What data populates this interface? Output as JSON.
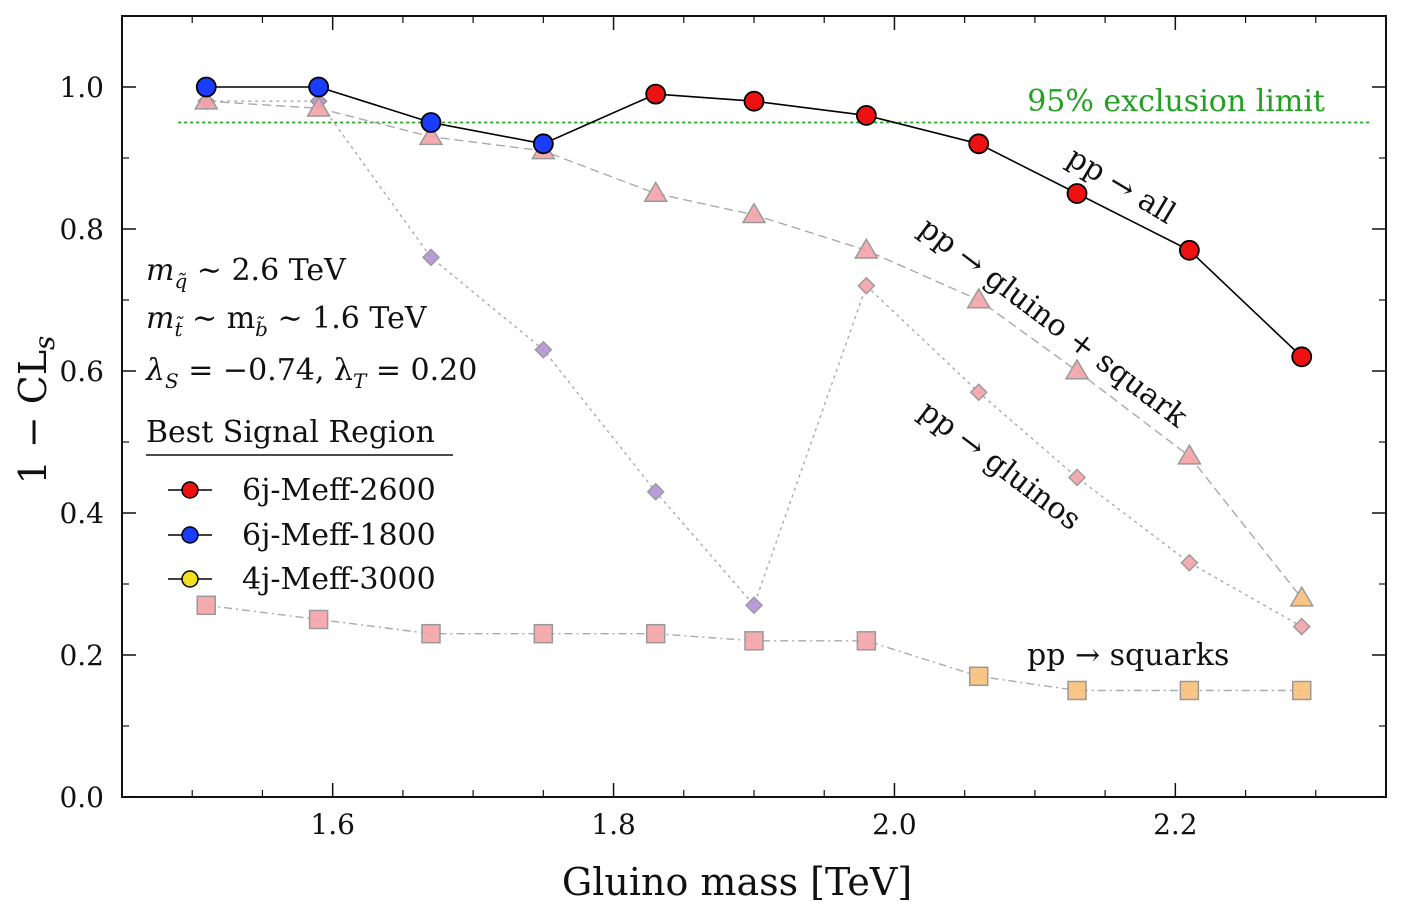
{
  "chart_data": {
    "type": "line",
    "xlabel": "Gluino mass [TeV]",
    "ylabel": "1 − CL",
    "ylabel_sub": "s",
    "xlim": [
      1.45,
      2.35
    ],
    "ylim": [
      0.0,
      1.1
    ],
    "x_ticks": [
      1.6,
      1.8,
      2.0,
      2.2
    ],
    "x_tick_labels": [
      "1.6",
      "1.8",
      "2.0",
      "2.2"
    ],
    "y_ticks": [
      0.0,
      0.2,
      0.4,
      0.6,
      0.8,
      1.0
    ],
    "y_tick_labels": [
      "0.0",
      "0.2",
      "0.4",
      "0.6",
      "0.8",
      "1.0"
    ],
    "x": [
      1.51,
      1.59,
      1.67,
      1.75,
      1.83,
      1.9,
      1.98,
      2.06,
      2.13,
      2.21,
      2.29
    ],
    "series": [
      {
        "name": "pp → all",
        "marker": "circle",
        "line_color": "#000000",
        "dash": "",
        "values": [
          1.0,
          1.0,
          0.95,
          0.92,
          0.99,
          0.98,
          0.96,
          0.92,
          0.85,
          0.77,
          0.62
        ],
        "point_colors": [
          "#1a3cff",
          "#1a3cff",
          "#1a3cff",
          "#1a3cff",
          "#ee1111",
          "#ee1111",
          "#ee1111",
          "#ee1111",
          "#ee1111",
          "#ee1111",
          "#ee1111"
        ],
        "label": "pp → all"
      },
      {
        "name": "pp → gluino + squark",
        "marker": "triangle",
        "line_color": "#aaaaaa",
        "dash": "9 5",
        "values": [
          0.98,
          0.97,
          0.93,
          0.91,
          0.85,
          0.82,
          0.77,
          0.7,
          0.6,
          0.48,
          0.28
        ],
        "point_colors": [
          "#f4a3a8",
          "#f4a3a8",
          "#f4a3a8",
          "#f4a3a8",
          "#f4a3a8",
          "#f4a3a8",
          "#f4a3a8",
          "#f4a3a8",
          "#f4a3a8",
          "#f4a3a8",
          "#f9c07a"
        ],
        "label": "pp → gluino + squark"
      },
      {
        "name": "pp → gluinos",
        "marker": "diamond",
        "line_color": "#aaaaaa",
        "dash": "3 4",
        "values": [
          0.98,
          0.98,
          0.76,
          0.63,
          0.43,
          0.27,
          0.72,
          0.57,
          0.45,
          0.33,
          0.24
        ],
        "point_colors": [
          "#b491d6",
          "#b491d6",
          "#b491d6",
          "#b491d6",
          "#b491d6",
          "#b491d6",
          "#f4a3a8",
          "#f4a3a8",
          "#f4a3a8",
          "#f4a3a8",
          "#f4a3a8"
        ],
        "label": "pp → gluinos"
      },
      {
        "name": "pp → squarks",
        "marker": "square",
        "line_color": "#aaaaaa",
        "dash": "8 4 2 4",
        "values": [
          0.27,
          0.25,
          0.23,
          0.23,
          0.23,
          0.22,
          0.22,
          0.17,
          0.15,
          0.15,
          0.15
        ],
        "point_colors": [
          "#f4a3a8",
          "#f4a3a8",
          "#f4a3a8",
          "#f4a3a8",
          "#f4a3a8",
          "#f4a3a8",
          "#f4a3a8",
          "#f9c07a",
          "#f9c07a",
          "#f9c07a",
          "#f9c07a"
        ],
        "label": "pp → squarks"
      }
    ],
    "exclusion_line": {
      "y": 0.95,
      "label": "95% exclusion limit",
      "color": "#22a022"
    },
    "annotations": [
      {
        "text": "m",
        "sub": "q̃",
        "rest": " ∼ 2.6 TeV"
      },
      {
        "text": "m",
        "sub": "t̃",
        "rest": " ∼ m",
        "sub2": "b̃",
        "rest2": " ∼ 1.6 TeV"
      },
      {
        "text": "λ",
        "sub": "S",
        "rest": " = −0.74, λ",
        "sub2": "T",
        "rest2": " = 0.20"
      }
    ],
    "legend": {
      "title": "Best Signal Region",
      "entries": [
        {
          "label": "6j-Meff-2600",
          "color": "#ee1111"
        },
        {
          "label": "6j-Meff-1800",
          "color": "#1a3cff"
        },
        {
          "label": "4j-Meff-3000",
          "color": "#f0e020"
        }
      ]
    }
  }
}
